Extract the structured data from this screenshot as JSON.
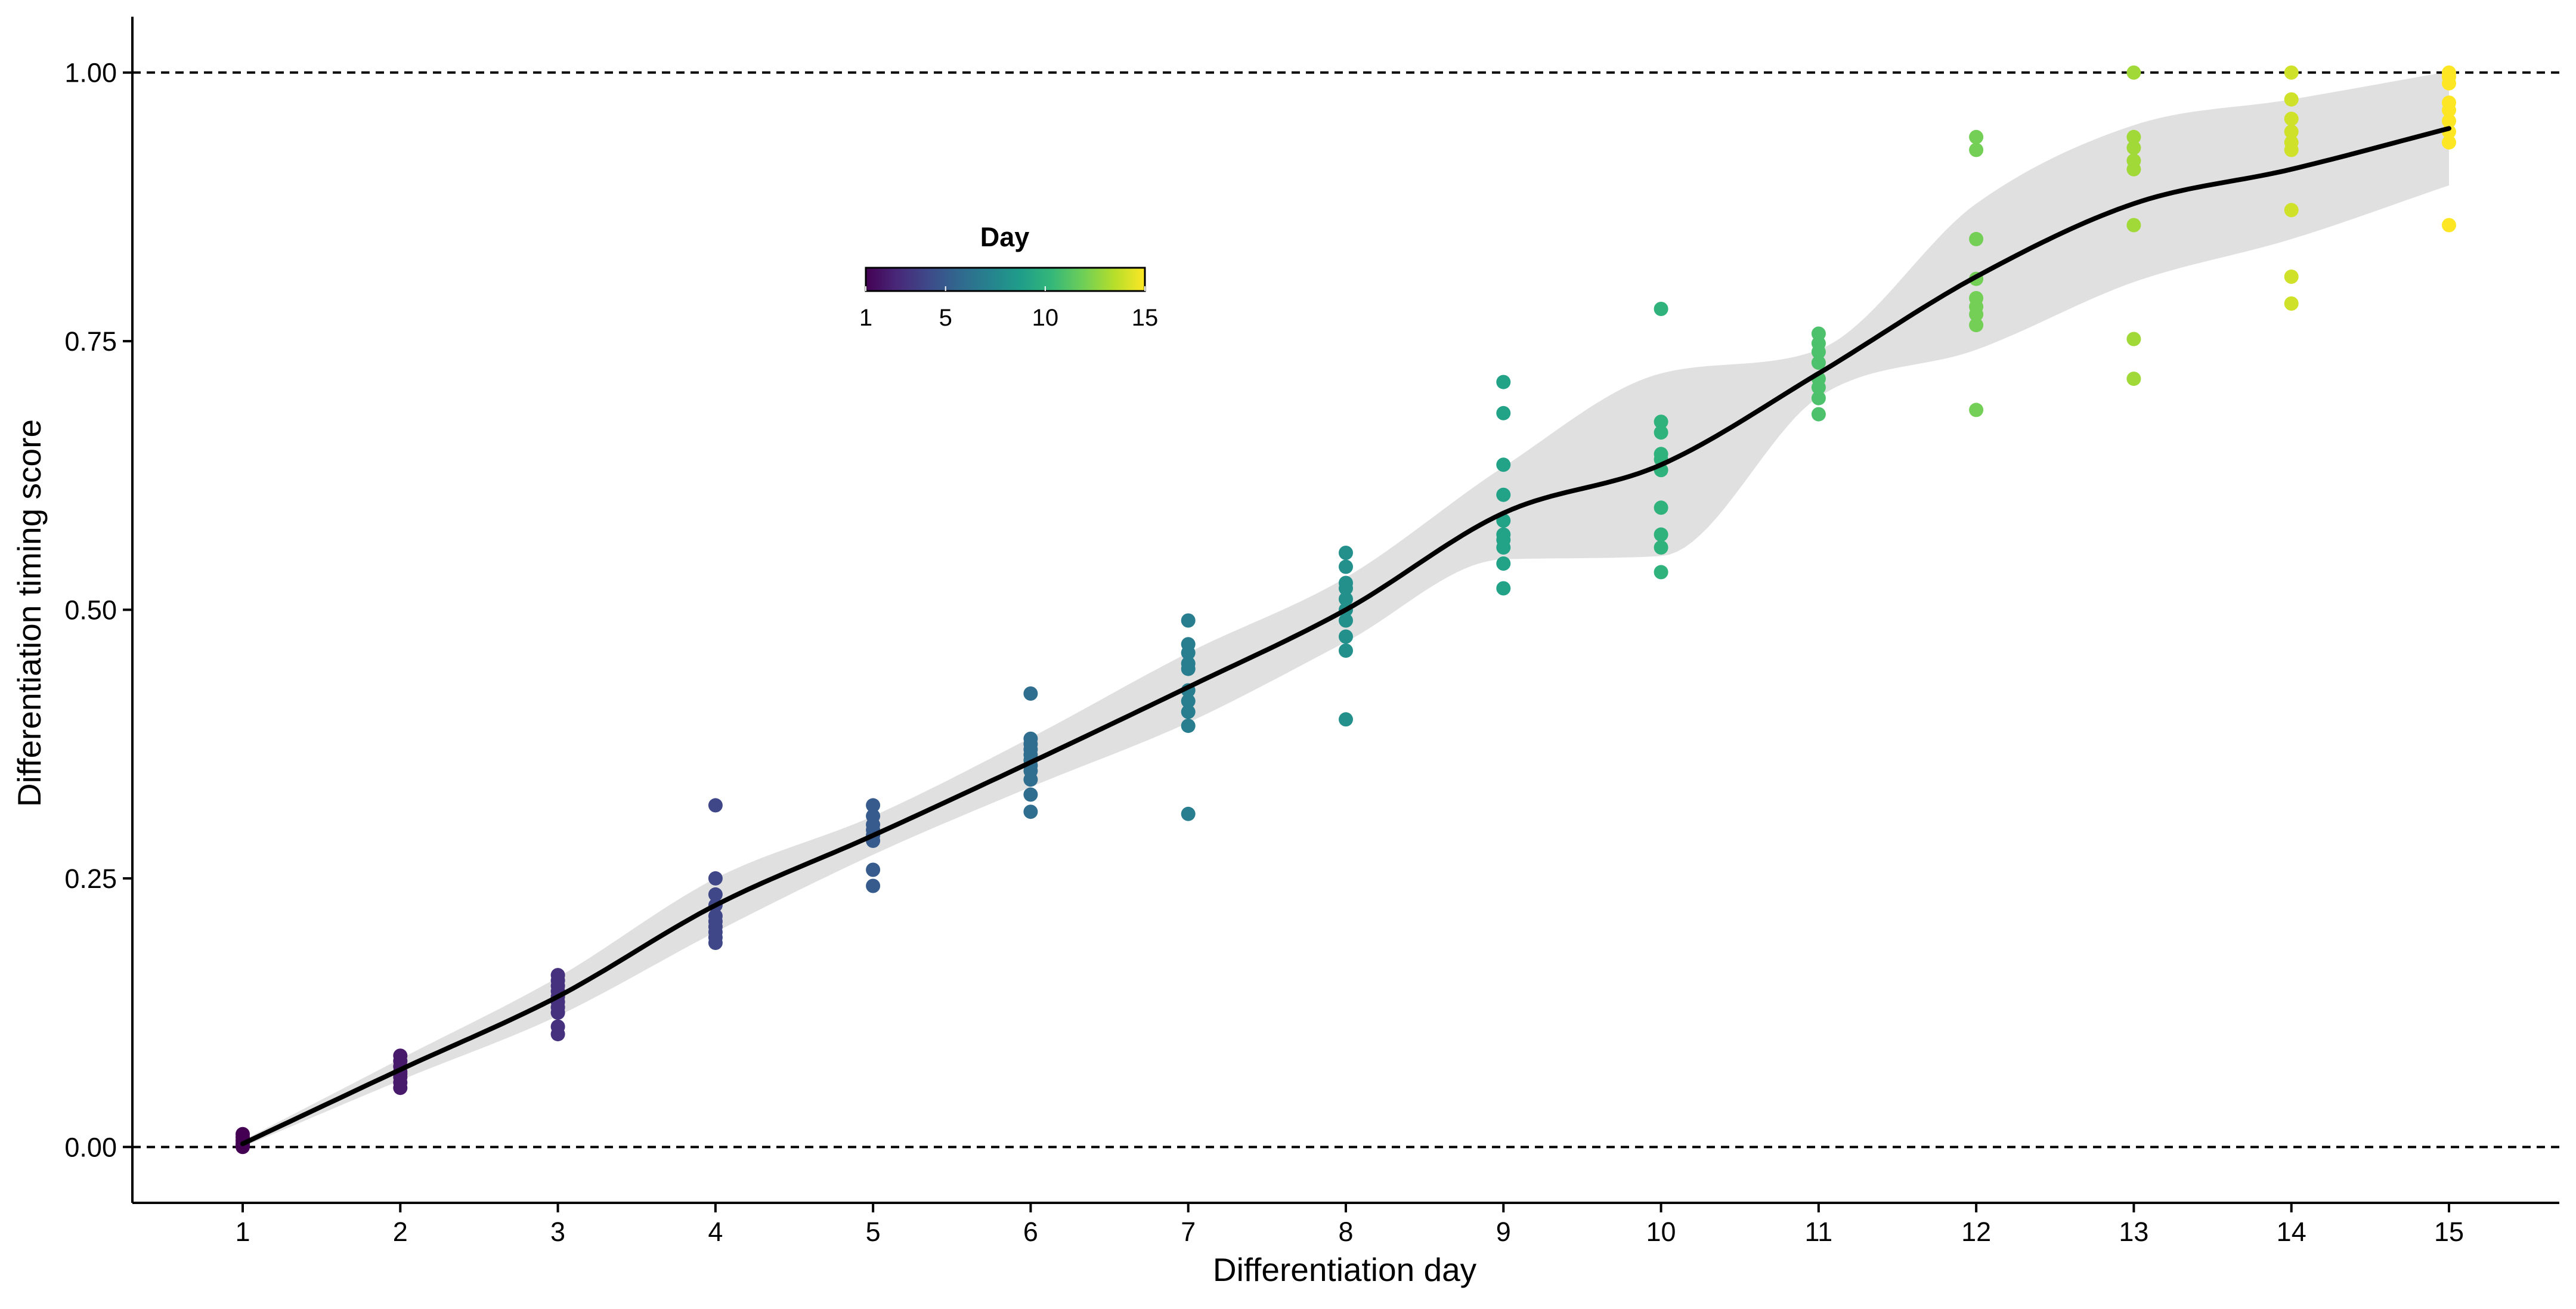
{
  "chart_data": {
    "type": "scatter",
    "xlabel": "Differentiation day",
    "ylabel": "Differentiation timing score",
    "xlim": [
      0.3,
      15.7
    ],
    "ylim": [
      -0.052,
      1.052
    ],
    "x_ticks": [
      1,
      2,
      3,
      4,
      5,
      6,
      7,
      8,
      9,
      10,
      11,
      12,
      13,
      14,
      15
    ],
    "y_ticks": [
      0.0,
      0.25,
      0.5,
      0.75,
      1.0
    ],
    "y_tick_labels": [
      "0.00",
      "0.25",
      "0.50",
      "0.75",
      "1.00"
    ],
    "reference_lines": [
      {
        "y": 0.0,
        "style": "dashed"
      },
      {
        "y": 1.0,
        "style": "dashed"
      }
    ],
    "grid": false,
    "legend": {
      "title": "Day",
      "type": "colorbar",
      "placement": "top-center",
      "range": [
        1,
        15
      ],
      "ticks": [
        1,
        5,
        10,
        15
      ],
      "palette": [
        "#440154",
        "#482878",
        "#3e4989",
        "#31688e",
        "#26828e",
        "#1f9e89",
        "#35b779",
        "#6ece58",
        "#b5de2b",
        "#fde725"
      ]
    },
    "points": [
      {
        "day": 1,
        "scores": [
          0.0,
          0.003,
          0.006,
          0.009,
          0.012,
          0.002
        ]
      },
      {
        "day": 2,
        "scores": [
          0.055,
          0.06,
          0.065,
          0.07,
          0.075,
          0.08,
          0.085,
          0.068
        ]
      },
      {
        "day": 3,
        "scores": [
          0.105,
          0.112,
          0.125,
          0.13,
          0.135,
          0.14,
          0.145,
          0.15,
          0.155,
          0.16
        ]
      },
      {
        "day": 4,
        "scores": [
          0.19,
          0.195,
          0.2,
          0.205,
          0.21,
          0.215,
          0.225,
          0.235,
          0.25,
          0.318
        ]
      },
      {
        "day": 5,
        "scores": [
          0.243,
          0.258,
          0.285,
          0.29,
          0.295,
          0.3,
          0.308,
          0.318
        ]
      },
      {
        "day": 6,
        "scores": [
          0.312,
          0.328,
          0.342,
          0.35,
          0.355,
          0.36,
          0.365,
          0.37,
          0.375,
          0.38,
          0.422
        ]
      },
      {
        "day": 7,
        "scores": [
          0.31,
          0.392,
          0.405,
          0.415,
          0.425,
          0.445,
          0.45,
          0.46,
          0.468,
          0.49
        ]
      },
      {
        "day": 8,
        "scores": [
          0.398,
          0.462,
          0.475,
          0.49,
          0.5,
          0.51,
          0.52,
          0.525,
          0.54,
          0.553
        ]
      },
      {
        "day": 9,
        "scores": [
          0.52,
          0.543,
          0.558,
          0.565,
          0.57,
          0.583,
          0.607,
          0.635,
          0.683,
          0.712
        ]
      },
      {
        "day": 10,
        "scores": [
          0.535,
          0.558,
          0.57,
          0.595,
          0.63,
          0.64,
          0.645,
          0.665,
          0.675,
          0.78
        ]
      },
      {
        "day": 11,
        "scores": [
          0.682,
          0.697,
          0.707,
          0.715,
          0.73,
          0.74,
          0.748,
          0.757
        ]
      },
      {
        "day": 12,
        "scores": [
          0.686,
          0.765,
          0.775,
          0.782,
          0.79,
          0.808,
          0.845,
          0.928,
          0.94
        ]
      },
      {
        "day": 13,
        "scores": [
          0.715,
          0.752,
          0.858,
          0.91,
          0.918,
          0.93,
          0.94,
          1.0
        ]
      },
      {
        "day": 14,
        "scores": [
          0.785,
          0.81,
          0.872,
          0.928,
          0.935,
          0.945,
          0.957,
          0.975,
          1.0
        ]
      },
      {
        "day": 15,
        "scores": [
          0.858,
          0.935,
          0.945,
          0.955,
          0.965,
          0.972,
          0.99,
          0.996,
          1.0
        ]
      }
    ],
    "smooth_fit": {
      "x": [
        1,
        2,
        3,
        4,
        5,
        6,
        7,
        8,
        9,
        10,
        11,
        12,
        13,
        14,
        15
      ],
      "y": [
        0.003,
        0.072,
        0.14,
        0.225,
        0.29,
        0.358,
        0.428,
        0.5,
        0.59,
        0.635,
        0.72,
        0.81,
        0.878,
        0.91,
        0.948
      ],
      "ci_lower": [
        0.0,
        0.062,
        0.122,
        0.2,
        0.272,
        0.335,
        0.395,
        0.47,
        0.547,
        0.55,
        0.698,
        0.742,
        0.805,
        0.845,
        0.895
      ],
      "ci_upper": [
        0.006,
        0.082,
        0.158,
        0.25,
        0.308,
        0.381,
        0.46,
        0.53,
        0.633,
        0.72,
        0.742,
        0.878,
        0.951,
        0.975,
        1.001
      ],
      "line_color": "#000000",
      "band_color": "#e0e0e0"
    }
  }
}
